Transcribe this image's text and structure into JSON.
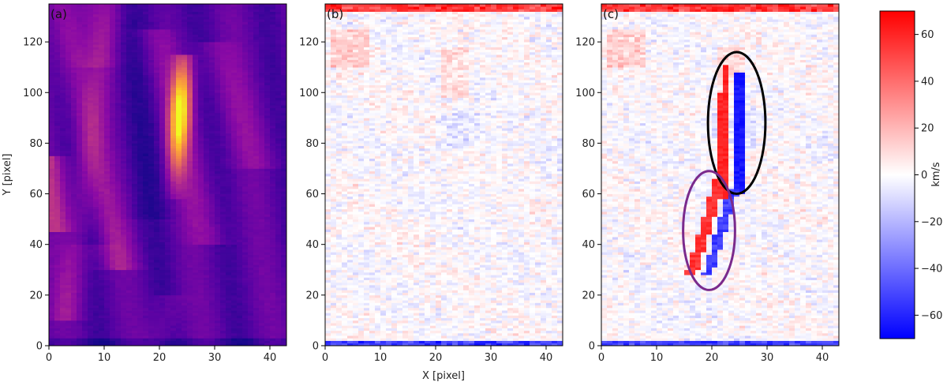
{
  "chart_data": [
    {
      "type": "heatmap",
      "panel_label": "(a)",
      "colormap": "plasma",
      "xlim": [
        0,
        43
      ],
      "ylim": [
        0,
        135
      ],
      "xticks": [
        0,
        10,
        20,
        30,
        40
      ],
      "yticks": [
        0,
        20,
        40,
        60,
        80,
        100,
        120
      ],
      "xlabel": "",
      "ylabel": "Y [pixel]"
    },
    {
      "type": "heatmap",
      "panel_label": "(b)",
      "colormap": "bwr",
      "xlim": [
        0,
        43
      ],
      "ylim": [
        0,
        135
      ],
      "xticks": [
        0,
        10,
        20,
        30,
        40
      ],
      "yticks": [
        0,
        20,
        40,
        60,
        80,
        100,
        120
      ],
      "xlabel": "X [pixel]",
      "ylabel": ""
    },
    {
      "type": "heatmap",
      "panel_label": "(c)",
      "colormap": "bwr",
      "xlim": [
        0,
        43
      ],
      "ylim": [
        0,
        135
      ],
      "xticks": [
        0,
        10,
        20,
        30,
        40
      ],
      "yticks": [
        0,
        20,
        40,
        60,
        80,
        100,
        120
      ],
      "xlabel": "",
      "ylabel": "",
      "annotations": [
        {
          "shape": "ellipse",
          "color": "#000000",
          "center": [
            24.5,
            88
          ],
          "radii": [
            5.2,
            28
          ]
        },
        {
          "shape": "ellipse",
          "color": "#7a2a8c",
          "center": [
            19.5,
            45.5
          ],
          "radii": [
            4.7,
            23.5
          ]
        }
      ]
    }
  ],
  "colorbar": {
    "label": "km/s",
    "range": [
      -70,
      70
    ],
    "ticks": [
      -60,
      -40,
      -20,
      0,
      20,
      40,
      60
    ],
    "tick_labels": [
      "−60",
      "−40",
      "−20",
      "0",
      "20",
      "40",
      "60"
    ]
  }
}
